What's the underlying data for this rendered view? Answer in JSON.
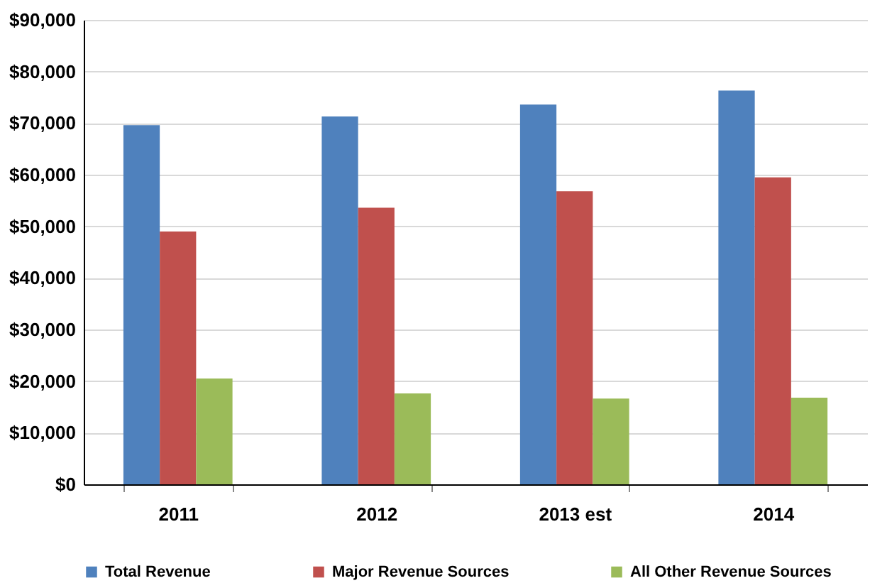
{
  "chart_data": {
    "type": "bar",
    "categories": [
      "2011",
      "2012",
      "2013 est",
      "2014"
    ],
    "series": [
      {
        "name": "Total Revenue",
        "color": "#4f81bd",
        "values": [
          69600,
          71300,
          73600,
          76300
        ]
      },
      {
        "name": "Major Revenue Sources",
        "color": "#c0504d",
        "values": [
          49000,
          53600,
          56800,
          59500
        ]
      },
      {
        "name": "All Other Revenue Sources",
        "color": "#9bbb59",
        "values": [
          20500,
          17600,
          16600,
          16800
        ]
      }
    ],
    "ylim": [
      0,
      90000
    ],
    "yticks": [
      {
        "value": 0,
        "label": "$0"
      },
      {
        "value": 10000,
        "label": "$10,000"
      },
      {
        "value": 20000,
        "label": "$20,000"
      },
      {
        "value": 30000,
        "label": "$30,000"
      },
      {
        "value": 40000,
        "label": "$40,000"
      },
      {
        "value": 50000,
        "label": "$50,000"
      },
      {
        "value": 60000,
        "label": "$60,000"
      },
      {
        "value": 70000,
        "label": "$70,000"
      },
      {
        "value": 80000,
        "label": "$80,000"
      },
      {
        "value": 90000,
        "label": "$90,000"
      }
    ],
    "grid": "y",
    "legend": "bottom"
  }
}
